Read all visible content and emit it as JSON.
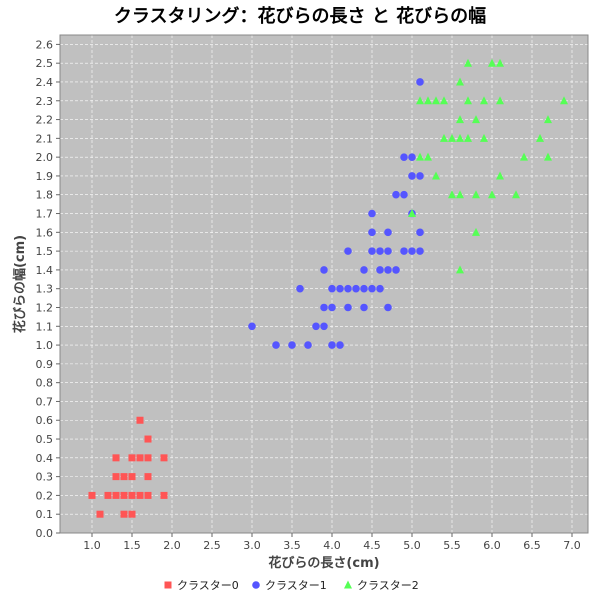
{
  "chart_data": {
    "type": "scatter",
    "title": "クラスタリング：花びらの長さ と 花びらの幅",
    "xlabel": "花びらの長さ(cm)",
    "ylabel": "花びらの幅(cm)",
    "xlim": [
      0.6,
      7.2
    ],
    "ylim": [
      0.0,
      2.65
    ],
    "xticks": [
      "1.0",
      "1.5",
      "2.0",
      "2.5",
      "3.0",
      "3.5",
      "4.0",
      "4.5",
      "5.0",
      "5.5",
      "6.0",
      "6.5",
      "7.0"
    ],
    "yticks": [
      "0.0",
      "0.1",
      "0.2",
      "0.3",
      "0.4",
      "0.5",
      "0.6",
      "0.7",
      "0.8",
      "0.9",
      "1.0",
      "1.1",
      "1.2",
      "1.3",
      "1.4",
      "1.5",
      "1.6",
      "1.7",
      "1.8",
      "1.9",
      "2.0",
      "2.1",
      "2.2",
      "2.3",
      "2.4",
      "2.5",
      "2.6"
    ],
    "grid": true,
    "legend_position": "bottom",
    "series": [
      {
        "name": "クラスター0",
        "color": "#ff5555",
        "marker": "square",
        "points": [
          [
            1.0,
            0.2
          ],
          [
            1.1,
            0.1
          ],
          [
            1.2,
            0.2
          ],
          [
            1.3,
            0.2
          ],
          [
            1.3,
            0.3
          ],
          [
            1.3,
            0.4
          ],
          [
            1.4,
            0.2
          ],
          [
            1.4,
            0.3
          ],
          [
            1.4,
            0.1
          ],
          [
            1.5,
            0.2
          ],
          [
            1.5,
            0.1
          ],
          [
            1.5,
            0.4
          ],
          [
            1.5,
            0.3
          ],
          [
            1.6,
            0.2
          ],
          [
            1.6,
            0.4
          ],
          [
            1.6,
            0.6
          ],
          [
            1.7,
            0.2
          ],
          [
            1.7,
            0.4
          ],
          [
            1.7,
            0.3
          ],
          [
            1.7,
            0.5
          ],
          [
            1.9,
            0.2
          ],
          [
            1.9,
            0.4
          ]
        ]
      },
      {
        "name": "クラスター1",
        "color": "#5555ff",
        "marker": "circle",
        "points": [
          [
            3.0,
            1.1
          ],
          [
            3.3,
            1.0
          ],
          [
            3.5,
            1.0
          ],
          [
            3.6,
            1.3
          ],
          [
            3.7,
            1.0
          ],
          [
            3.8,
            1.1
          ],
          [
            3.9,
            1.1
          ],
          [
            3.9,
            1.2
          ],
          [
            3.9,
            1.4
          ],
          [
            4.0,
            1.0
          ],
          [
            4.0,
            1.2
          ],
          [
            4.0,
            1.3
          ],
          [
            4.1,
            1.0
          ],
          [
            4.1,
            1.3
          ],
          [
            4.2,
            1.2
          ],
          [
            4.2,
            1.3
          ],
          [
            4.2,
            1.5
          ],
          [
            4.3,
            1.3
          ],
          [
            4.4,
            1.2
          ],
          [
            4.4,
            1.3
          ],
          [
            4.4,
            1.4
          ],
          [
            4.5,
            1.3
          ],
          [
            4.5,
            1.5
          ],
          [
            4.5,
            1.6
          ],
          [
            4.5,
            1.7
          ],
          [
            4.6,
            1.3
          ],
          [
            4.6,
            1.4
          ],
          [
            4.6,
            1.5
          ],
          [
            4.7,
            1.2
          ],
          [
            4.7,
            1.4
          ],
          [
            4.7,
            1.5
          ],
          [
            4.7,
            1.6
          ],
          [
            4.8,
            1.4
          ],
          [
            4.8,
            1.8
          ],
          [
            4.9,
            1.5
          ],
          [
            4.9,
            1.8
          ],
          [
            4.9,
            2.0
          ],
          [
            5.0,
            1.5
          ],
          [
            5.0,
            1.7
          ],
          [
            5.0,
            1.9
          ],
          [
            5.0,
            2.0
          ],
          [
            5.1,
            1.5
          ],
          [
            5.1,
            1.6
          ],
          [
            5.1,
            1.9
          ],
          [
            5.1,
            2.4
          ]
        ]
      },
      {
        "name": "クラスター2",
        "color": "#55ff55",
        "marker": "triangle",
        "points": [
          [
            5.0,
            1.7
          ],
          [
            5.1,
            2.0
          ],
          [
            5.1,
            2.3
          ],
          [
            5.2,
            2.0
          ],
          [
            5.2,
            2.3
          ],
          [
            5.3,
            1.9
          ],
          [
            5.3,
            2.3
          ],
          [
            5.4,
            2.1
          ],
          [
            5.4,
            2.3
          ],
          [
            5.5,
            1.8
          ],
          [
            5.5,
            2.1
          ],
          [
            5.6,
            1.4
          ],
          [
            5.6,
            1.8
          ],
          [
            5.6,
            2.1
          ],
          [
            5.6,
            2.2
          ],
          [
            5.6,
            2.4
          ],
          [
            5.7,
            2.1
          ],
          [
            5.7,
            2.3
          ],
          [
            5.7,
            2.5
          ],
          [
            5.8,
            1.6
          ],
          [
            5.8,
            1.8
          ],
          [
            5.8,
            2.2
          ],
          [
            5.9,
            2.1
          ],
          [
            5.9,
            2.3
          ],
          [
            6.0,
            1.8
          ],
          [
            6.0,
            2.5
          ],
          [
            6.1,
            1.9
          ],
          [
            6.1,
            2.3
          ],
          [
            6.1,
            2.5
          ],
          [
            6.3,
            1.8
          ],
          [
            6.4,
            2.0
          ],
          [
            6.6,
            2.1
          ],
          [
            6.7,
            2.0
          ],
          [
            6.7,
            2.2
          ],
          [
            6.9,
            2.3
          ]
        ]
      }
    ]
  }
}
